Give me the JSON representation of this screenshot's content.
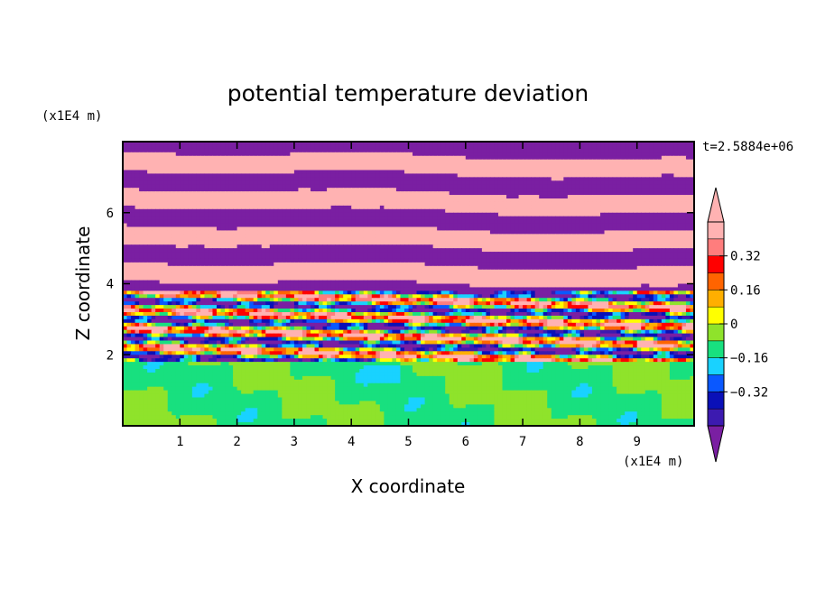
{
  "chart_data": {
    "type": "heatmap",
    "title": "potential temperature deviation",
    "xlabel": "X coordinate",
    "ylabel": "Z coordinate",
    "x_unit": "(x1E4 m)",
    "y_unit": "(x1E4 m)",
    "time_label": "t=2.5884e+06",
    "xlim": [
      0,
      10
    ],
    "ylim": [
      0,
      8
    ],
    "x_ticks": [
      1,
      2,
      3,
      4,
      5,
      6,
      7,
      8,
      9
    ],
    "x_tick_labels": [
      "1",
      "2",
      "3",
      "4",
      "5",
      "6",
      "7",
      "8",
      "9"
    ],
    "y_ticks": [
      2,
      4,
      6
    ],
    "y_tick_labels": [
      "2",
      "4",
      "6"
    ],
    "grid": false,
    "colorbar": {
      "placement": "right",
      "levels": [
        -0.48,
        -0.4,
        -0.32,
        -0.24,
        -0.16,
        -0.08,
        0,
        0.08,
        0.16,
        0.24,
        0.32,
        0.4,
        0.48
      ],
      "colors": [
        "#7a1fa2",
        "#3c1ab0",
        "#0a10b8",
        "#0a58ff",
        "#19d2ff",
        "#18e07f",
        "#8fe32b",
        "#ffff00",
        "#ffaf00",
        "#ff6400",
        "#ff0000",
        "#ff7d7d",
        "#ffb2b2"
      ],
      "tick_values": [
        -0.32,
        -0.16,
        0,
        0.16,
        0.32
      ],
      "tick_labels": [
        "−0.32",
        "−0.16",
        "0",
        "0.16",
        "0.32"
      ],
      "extend": "both"
    },
    "field_description": {
      "layers": [
        {
          "z_range": [
            0,
            1.8
          ],
          "dominant_values": [
            -0.08,
            0.0
          ]
        },
        {
          "z_range": [
            1.8,
            3.8
          ],
          "dominant_values": [
            -0.48,
            -0.16,
            0.24,
            0.48
          ]
        },
        {
          "z_range": [
            3.8,
            8.0
          ],
          "dominant_values": [
            -0.48,
            0.48
          ]
        }
      ]
    }
  }
}
